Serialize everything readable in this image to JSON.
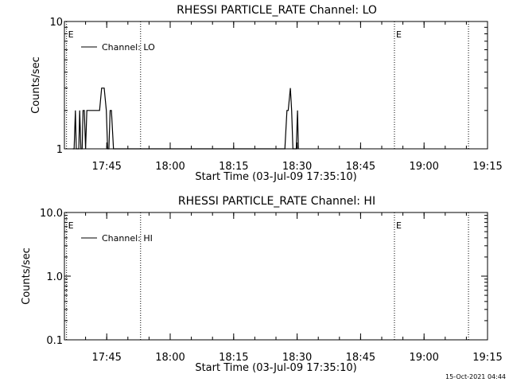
{
  "footer": {
    "timestamp": "15-Oct-2021 04:44"
  },
  "chart_data": [
    {
      "type": "line",
      "title": "RHESSI PARTICLE_RATE Channel: LO",
      "xlabel": "Start Time (03-Jul-09 17:35:10)",
      "ylabel": "Counts/sec",
      "y_scale": "log",
      "ylim": [
        1,
        10
      ],
      "y_ticks": [
        {
          "v": 1,
          "label": "1"
        },
        {
          "v": 10,
          "label": "10"
        }
      ],
      "xlim": [
        "17:35",
        "19:15"
      ],
      "x_ticks": [
        "17:45",
        "18:00",
        "18:15",
        "18:30",
        "18:45",
        "19:00",
        "19:15"
      ],
      "legend": {
        "position": "top-left",
        "label": "Channel: LO"
      },
      "event_markers": [
        {
          "time": "17:35.5",
          "label": "E"
        },
        {
          "time": "17:53",
          "label": ""
        },
        {
          "time": "18:53",
          "label": "E"
        },
        {
          "time": "19:10.5",
          "label": ""
        }
      ],
      "series": [
        {
          "name": "Channel: LO",
          "x": [
            "17:37.0",
            "17:37.3",
            "17:37.6",
            "17:37.8",
            "17:38.1",
            "17:38.4",
            "17:38.6",
            "17:38.9",
            "17:39.2",
            "17:39.4",
            "17:39.7",
            "17:40.0",
            "17:40.3",
            "17:40.5",
            "17:40.8",
            "17:43.0",
            "17:43.3",
            "17:43.8",
            "17:44.4",
            "17:44.9",
            "17:45.2",
            "17:45.5",
            "17:45.8",
            "17:46.1",
            "17:46.6",
            "17:46.9",
            "18:26.8",
            "18:27.1",
            "18:27.6",
            "18:27.9",
            "18:28.4",
            "18:28.7",
            "18:29.0",
            "18:29.2",
            "18:29.5",
            "18:29.8",
            "18:30.1",
            "18:30.3"
          ],
          "y": [
            1,
            1,
            2,
            1,
            1,
            1,
            2,
            1,
            1,
            2,
            2,
            1,
            2,
            2,
            2,
            2,
            2,
            3,
            3,
            2,
            1,
            1,
            2,
            2,
            1,
            1,
            1,
            1,
            2,
            2,
            3,
            2,
            1,
            1,
            1,
            1,
            2,
            1
          ]
        }
      ]
    },
    {
      "type": "line",
      "title": "RHESSI PARTICLE_RATE Channel: HI",
      "xlabel": "Start Time (03-Jul-09 17:35:10)",
      "ylabel": "Counts/sec",
      "y_scale": "log",
      "ylim": [
        0.1,
        10
      ],
      "y_ticks": [
        {
          "v": 0.1,
          "label": "0.1"
        },
        {
          "v": 1,
          "label": "1.0"
        },
        {
          "v": 10,
          "label": "10.0"
        }
      ],
      "xlim": [
        "17:35",
        "19:15"
      ],
      "x_ticks": [
        "17:45",
        "18:00",
        "18:15",
        "18:30",
        "18:45",
        "19:00",
        "19:15"
      ],
      "legend": {
        "position": "top-left",
        "label": "Channel: HI"
      },
      "event_markers": [
        {
          "time": "17:35.5",
          "label": "E"
        },
        {
          "time": "17:53",
          "label": ""
        },
        {
          "time": "18:53",
          "label": "E"
        },
        {
          "time": "19:10.5",
          "label": ""
        }
      ],
      "series": [
        {
          "name": "Channel: HI",
          "x": [],
          "y": []
        }
      ]
    }
  ]
}
